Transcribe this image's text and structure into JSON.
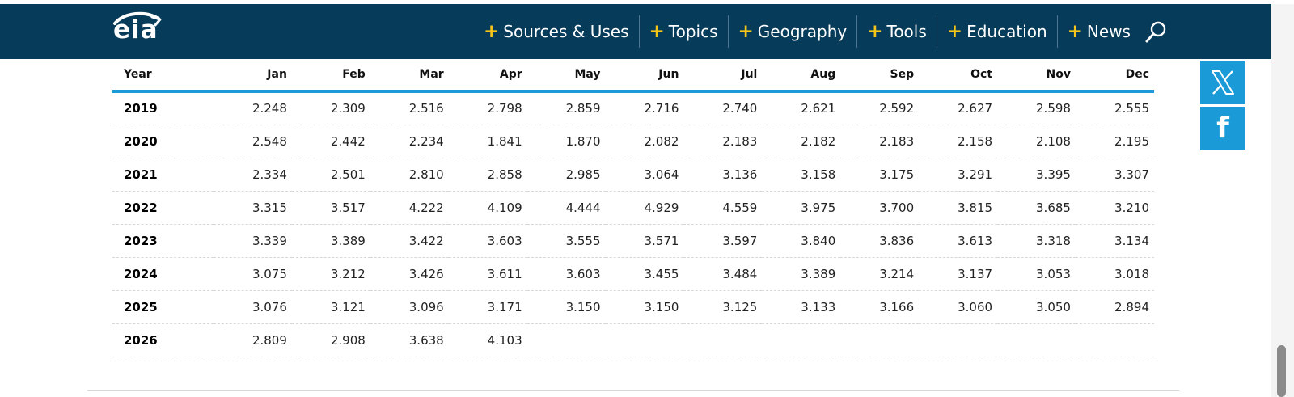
{
  "header": {
    "logo_text": "eia",
    "nav": [
      {
        "label": "Sources & Uses",
        "name": "nav-sources-uses"
      },
      {
        "label": "Topics",
        "name": "nav-topics"
      },
      {
        "label": "Geography",
        "name": "nav-geography"
      },
      {
        "label": "Tools",
        "name": "nav-tools"
      },
      {
        "label": "Education",
        "name": "nav-education"
      },
      {
        "label": "News",
        "name": "nav-news"
      }
    ],
    "plus_glyph": "+"
  },
  "table": {
    "headers": [
      "Year",
      "Jan",
      "Feb",
      "Mar",
      "Apr",
      "May",
      "Jun",
      "Jul",
      "Aug",
      "Sep",
      "Oct",
      "Nov",
      "Dec"
    ],
    "rows": [
      [
        "2019",
        "2.248",
        "2.309",
        "2.516",
        "2.798",
        "2.859",
        "2.716",
        "2.740",
        "2.621",
        "2.592",
        "2.627",
        "2.598",
        "2.555"
      ],
      [
        "2020",
        "2.548",
        "2.442",
        "2.234",
        "1.841",
        "1.870",
        "2.082",
        "2.183",
        "2.182",
        "2.183",
        "2.158",
        "2.108",
        "2.195"
      ],
      [
        "2021",
        "2.334",
        "2.501",
        "2.810",
        "2.858",
        "2.985",
        "3.064",
        "3.136",
        "3.158",
        "3.175",
        "3.291",
        "3.395",
        "3.307"
      ],
      [
        "2022",
        "3.315",
        "3.517",
        "4.222",
        "4.109",
        "4.444",
        "4.929",
        "4.559",
        "3.975",
        "3.700",
        "3.815",
        "3.685",
        "3.210"
      ],
      [
        "2023",
        "3.339",
        "3.389",
        "3.422",
        "3.603",
        "3.555",
        "3.571",
        "3.597",
        "3.840",
        "3.836",
        "3.613",
        "3.318",
        "3.134"
      ],
      [
        "2024",
        "3.075",
        "3.212",
        "3.426",
        "3.611",
        "3.603",
        "3.455",
        "3.484",
        "3.389",
        "3.214",
        "3.137",
        "3.053",
        "3.018"
      ],
      [
        "2025",
        "3.076",
        "3.121",
        "3.096",
        "3.171",
        "3.150",
        "3.150",
        "3.125",
        "3.133",
        "3.166",
        "3.060",
        "3.050",
        "2.894"
      ],
      [
        "2026",
        "2.809",
        "2.908",
        "3.638",
        "4.103",
        "",
        "",
        "",
        "",
        "",
        "",
        "",
        ""
      ]
    ]
  },
  "social": {
    "x_icon": "x-logo-icon",
    "facebook_icon": "facebook-icon",
    "facebook_glyph": "f"
  },
  "colors": {
    "header_bg": "#073b5a",
    "accent_plus": "#f5c518",
    "table_rule": "#1a9ad6",
    "social_bg": "#1a9ad6"
  }
}
